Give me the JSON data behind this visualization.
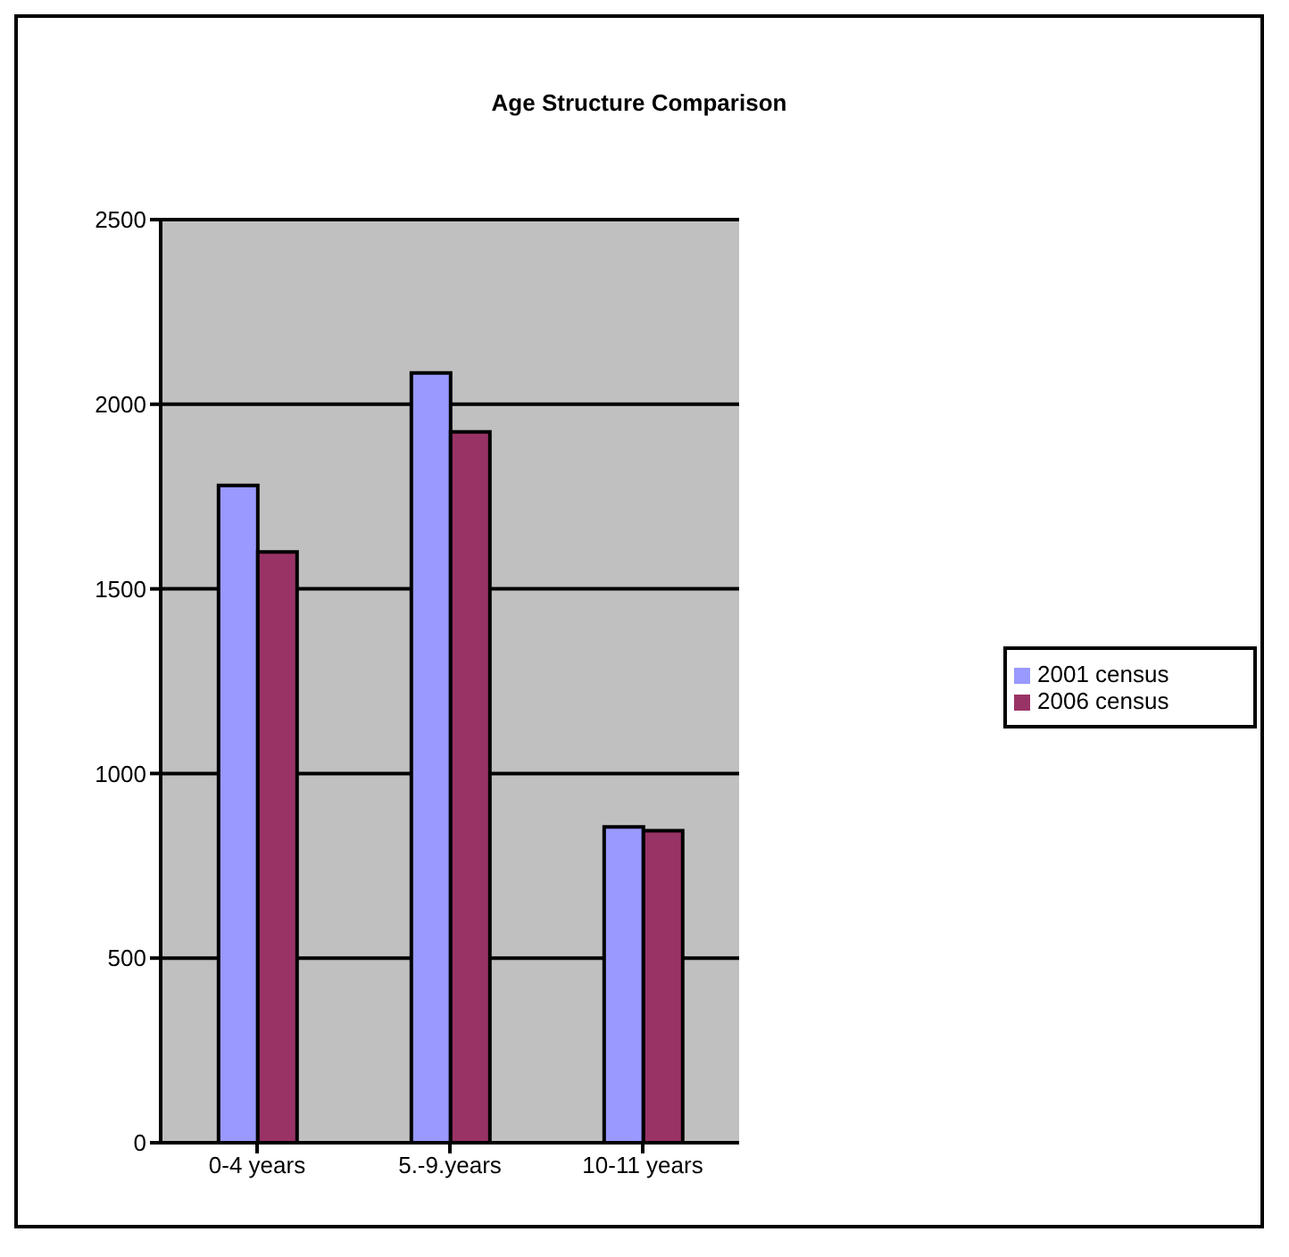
{
  "chart_data": {
    "type": "bar",
    "title": "Age Structure Comparison",
    "categories": [
      "0-4 years",
      "5.-9.years",
      "10-11 years"
    ],
    "series": [
      {
        "name": "2001 census",
        "color": "#9999ff",
        "values": [
          1780,
          2085,
          855
        ]
      },
      {
        "name": "2006 census",
        "color": "#993366",
        "values": [
          1600,
          1925,
          845
        ]
      }
    ],
    "ylim": [
      0,
      2500
    ],
    "yticks": [
      0,
      500,
      1000,
      1500,
      2000,
      2500
    ],
    "grid": "y",
    "legend": "right"
  }
}
